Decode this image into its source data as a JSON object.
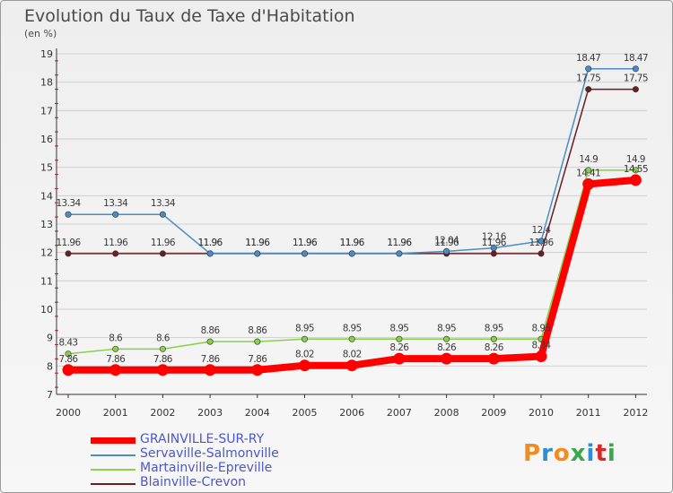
{
  "header": {
    "title": "Evolution du Taux de Taxe d'Habitation",
    "subtitle": "(en %)"
  },
  "logo": {
    "text": "Proxiti",
    "colors": [
      "#f28c1e",
      "#2a8fd6",
      "#f28c1e",
      "#3aa84a",
      "#2a8fd6",
      "#d62a2a",
      "#3aa84a"
    ]
  },
  "colors": {
    "grid": "#d0d0d0",
    "axis": "#333333",
    "tick_label": "#333333",
    "minor_tick": "#c02828"
  },
  "chart_data": {
    "type": "line",
    "title": "Evolution du Taux de Taxe d'Habitation",
    "ylabel": "(en %)",
    "x": [
      "2000",
      "2001",
      "2002",
      "2003",
      "2004",
      "2005",
      "2006",
      "2007",
      "2008",
      "2009",
      "2010",
      "2011",
      "2012"
    ],
    "ylim": [
      7,
      19
    ],
    "yticks": [
      7,
      8,
      9,
      10,
      11,
      12,
      13,
      14,
      15,
      16,
      17,
      18,
      19
    ],
    "grid": true,
    "legend_position": "bottom-left",
    "series": [
      {
        "name": "GRAINVILLE-SUR-RY",
        "color": "#ff0000",
        "values": [
          7.86,
          7.86,
          7.86,
          7.86,
          7.86,
          8.02,
          8.02,
          8.26,
          8.26,
          8.26,
          8.34,
          14.41,
          14.55
        ]
      },
      {
        "name": "Servaville-Salmonville",
        "color": "#4a8cc4",
        "values": [
          13.34,
          13.34,
          13.34,
          11.96,
          11.96,
          11.96,
          11.96,
          11.96,
          12.04,
          12.16,
          12.4,
          18.47,
          18.47
        ]
      },
      {
        "name": "Martainville-Epreville",
        "color": "#86d04a",
        "values": [
          8.43,
          8.6,
          8.6,
          8.86,
          8.86,
          8.95,
          8.95,
          8.95,
          8.95,
          8.95,
          8.95,
          14.9,
          14.9
        ]
      },
      {
        "name": "Blainville-Crevon",
        "color": "#6b1d22",
        "values": [
          11.96,
          11.96,
          11.96,
          11.96,
          11.96,
          11.96,
          11.96,
          11.96,
          11.96,
          11.96,
          11.96,
          17.75,
          17.75
        ]
      }
    ]
  }
}
